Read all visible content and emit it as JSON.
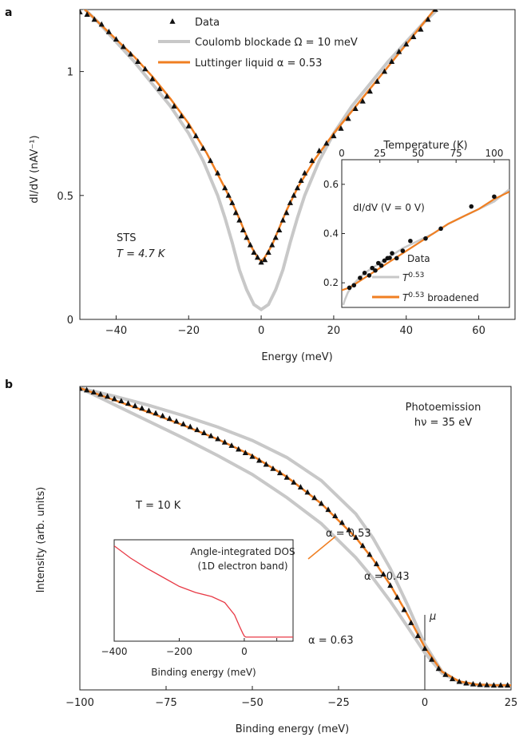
{
  "chart_data": [
    {
      "panel": "a",
      "type": "scatter",
      "xlabel": "Energy (meV)",
      "ylabel": "dI/dV (nAV⁻¹)",
      "xlim": [
        -50,
        70
      ],
      "ylim": [
        0,
        1.25
      ],
      "xticks": [
        "−40",
        "−20",
        "0",
        "20",
        "40",
        "60"
      ],
      "xtick_values": [
        -40,
        -20,
        0,
        20,
        40,
        60
      ],
      "yticks": [
        "0",
        "0.5",
        "1"
      ],
      "ytick_values": [
        0,
        0.5,
        1
      ],
      "annotation": [
        "STS",
        "T = 4.7 K"
      ],
      "legend": {
        "placement": "top-center",
        "entries": [
          {
            "label": "Data",
            "marker": "triangle",
            "color": "#111111"
          },
          {
            "label": "Coulomb blockade Ω = 10 meV",
            "color": "#c8c8c8"
          },
          {
            "label": "Luttinger liquid α = 0.53",
            "color": "#f07f22"
          }
        ]
      },
      "series": [
        {
          "name": "Data",
          "kind": "scatter",
          "marker": "triangle",
          "color": "#111111",
          "x": [
            -50,
            -48,
            -46,
            -44,
            -42,
            -40,
            -38,
            -36,
            -34,
            -32,
            -30,
            -28,
            -26,
            -24,
            -22,
            -20,
            -18,
            -16,
            -14,
            -12,
            -10,
            -9,
            -8,
            -7,
            -6,
            -5,
            -4,
            -3,
            -2,
            -1,
            0,
            1,
            2,
            3,
            4,
            5,
            6,
            7,
            8,
            9,
            10,
            11,
            12,
            14,
            16,
            18,
            20,
            22,
            24,
            26,
            28,
            30,
            32,
            34,
            36,
            38,
            40,
            42,
            44,
            46,
            48,
            50
          ],
          "y": [
            1.24,
            1.23,
            1.21,
            1.19,
            1.16,
            1.13,
            1.1,
            1.07,
            1.04,
            1.01,
            0.97,
            0.93,
            0.9,
            0.86,
            0.82,
            0.78,
            0.74,
            0.69,
            0.64,
            0.59,
            0.53,
            0.5,
            0.47,
            0.43,
            0.4,
            0.36,
            0.33,
            0.3,
            0.27,
            0.25,
            0.23,
            0.24,
            0.27,
            0.3,
            0.33,
            0.36,
            0.4,
            0.43,
            0.47,
            0.5,
            0.53,
            0.56,
            0.59,
            0.64,
            0.68,
            0.71,
            0.74,
            0.77,
            0.81,
            0.85,
            0.88,
            0.92,
            0.96,
            1.0,
            1.04,
            1.08,
            1.11,
            1.14,
            1.17,
            1.21,
            1.25,
            1.29
          ]
        },
        {
          "name": "Luttinger liquid α = 0.53",
          "kind": "line",
          "color": "#f07f22",
          "x": [
            -50,
            -45,
            -40,
            -35,
            -30,
            -25,
            -20,
            -15,
            -10,
            -7,
            -5,
            -3,
            -1,
            0,
            1,
            3,
            5,
            7,
            10,
            15,
            20,
            25,
            30,
            35,
            40,
            45,
            50
          ],
          "y": [
            1.27,
            1.2,
            1.13,
            1.06,
            0.98,
            0.89,
            0.79,
            0.67,
            0.53,
            0.44,
            0.37,
            0.3,
            0.25,
            0.235,
            0.25,
            0.3,
            0.37,
            0.44,
            0.53,
            0.65,
            0.75,
            0.84,
            0.93,
            1.02,
            1.11,
            1.2,
            1.29
          ]
        },
        {
          "name": "Coulomb blockade Ω = 10 meV",
          "kind": "line",
          "color": "#c8c8c8",
          "x": [
            -50,
            -45,
            -40,
            -35,
            -30,
            -25,
            -20,
            -16,
            -12,
            -10,
            -8,
            -6,
            -4,
            -2,
            0,
            2,
            4,
            6,
            8,
            10,
            12,
            16,
            20,
            25,
            30,
            35,
            40,
            45,
            50
          ],
          "y": [
            1.27,
            1.2,
            1.12,
            1.04,
            0.95,
            0.86,
            0.75,
            0.64,
            0.5,
            0.41,
            0.31,
            0.2,
            0.12,
            0.06,
            0.04,
            0.06,
            0.12,
            0.2,
            0.31,
            0.41,
            0.5,
            0.64,
            0.75,
            0.86,
            0.95,
            1.04,
            1.12,
            1.2,
            1.27
          ]
        }
      ],
      "inset": {
        "xlabel": "Temperature (K)",
        "title": "dI/dV (V = 0 V)",
        "xlim": [
          0,
          110
        ],
        "ylim": [
          0.1,
          0.7
        ],
        "xticks": [
          "0",
          "25",
          "50",
          "75",
          "100"
        ],
        "xtick_values": [
          0,
          25,
          50,
          75,
          100
        ],
        "yticks": [
          "0.2",
          "0.4",
          "0.6"
        ],
        "ytick_values": [
          0.2,
          0.4,
          0.6
        ],
        "legend": [
          {
            "label": "Data",
            "marker": "circle",
            "color": "#111111"
          },
          {
            "label": "T⁰·⁵³",
            "base": "T",
            "sup": "0.53",
            "color": "#c8c8c8"
          },
          {
            "label": "T⁰·⁵³ broadened",
            "base": "T",
            "sup": "0.53",
            "suffix": " broadened",
            "color": "#f07f22"
          }
        ],
        "series": [
          {
            "name": "Data",
            "kind": "scatter",
            "marker": "circle",
            "color": "#111111",
            "x": [
              5,
              8,
              12,
              15,
              18,
              20,
              22,
              24,
              26,
              28,
              30,
              33,
              36,
              40,
              45,
              55,
              65,
              85,
              100
            ],
            "y": [
              0.18,
              0.19,
              0.22,
              0.24,
              0.23,
              0.26,
              0.25,
              0.28,
              0.27,
              0.29,
              0.3,
              0.32,
              0.3,
              0.33,
              0.37,
              0.38,
              0.42,
              0.51,
              0.55
            ]
          },
          {
            "name": "T⁰·⁵³ broadened",
            "kind": "line",
            "color": "#f07f22",
            "x": [
              0,
              5,
              10,
              15,
              20,
              25,
              30,
              40,
              50,
              60,
              70,
              80,
              90,
              100,
              110
            ],
            "y": [
              0.17,
              0.18,
              0.2,
              0.22,
              0.24,
              0.26,
              0.28,
              0.32,
              0.36,
              0.4,
              0.44,
              0.47,
              0.5,
              0.54,
              0.57
            ]
          },
          {
            "name": "T⁰·⁵³",
            "kind": "line",
            "color": "#c8c8c8",
            "x": [
              1,
              2,
              4,
              7,
              10,
              15,
              20,
              30,
              40,
              50,
              60,
              70,
              80,
              90,
              100,
              110
            ],
            "y": [
              0.11,
              0.13,
              0.16,
              0.19,
              0.21,
              0.24,
              0.26,
              0.3,
              0.34,
              0.37,
              0.4,
              0.44,
              0.47,
              0.5,
              0.53,
              0.58
            ]
          }
        ]
      }
    },
    {
      "panel": "b",
      "type": "scatter",
      "xlabel": "Binding energy (meV)",
      "ylabel": "Intensity (arb. units)",
      "xlim": [
        -100,
        25
      ],
      "ylim": [
        0,
        1
      ],
      "xticks": [
        "−100",
        "−75",
        "−50",
        "−25",
        "0",
        "25"
      ],
      "xtick_values": [
        -100,
        -75,
        -50,
        -25,
        0,
        25
      ],
      "annotation_top": [
        "Photoemission",
        "hν = 35 eV"
      ],
      "annotation_temp": "T = 10 K",
      "mu_label": "μ",
      "alpha_labels": [
        {
          "text": "α = 0.53",
          "color": "#f07f22"
        },
        {
          "text": "α = 0.43",
          "color": "#222222"
        },
        {
          "text": "α = 0.63",
          "color": "#222222"
        }
      ],
      "series": [
        {
          "name": "Data",
          "kind": "scatter",
          "marker": "triangle",
          "color": "#111111",
          "x": [
            -100,
            -98,
            -96,
            -94,
            -92,
            -90,
            -88,
            -86,
            -84,
            -82,
            -80,
            -78,
            -76,
            -74,
            -72,
            -70,
            -68,
            -66,
            -64,
            -62,
            -60,
            -58,
            -56,
            -54,
            -52,
            -50,
            -48,
            -46,
            -44,
            -42,
            -40,
            -38,
            -36,
            -34,
            -32,
            -30,
            -28,
            -26,
            -24,
            -22,
            -20,
            -18,
            -16,
            -14,
            -12,
            -10,
            -8,
            -6,
            -4,
            -2,
            0,
            2,
            4,
            6,
            8,
            10,
            12,
            14,
            16,
            18,
            20,
            22,
            24
          ],
          "y": [
            0.993,
            0.988,
            0.981,
            0.974,
            0.967,
            0.959,
            0.952,
            0.944,
            0.936,
            0.928,
            0.92,
            0.912,
            0.903,
            0.894,
            0.885,
            0.876,
            0.867,
            0.857,
            0.847,
            0.837,
            0.827,
            0.816,
            0.805,
            0.793,
            0.781,
            0.769,
            0.756,
            0.743,
            0.729,
            0.715,
            0.7,
            0.684,
            0.668,
            0.651,
            0.633,
            0.614,
            0.594,
            0.573,
            0.551,
            0.527,
            0.502,
            0.475,
            0.446,
            0.415,
            0.381,
            0.344,
            0.305,
            0.264,
            0.221,
            0.178,
            0.136,
            0.1,
            0.07,
            0.05,
            0.036,
            0.027,
            0.022,
            0.019,
            0.017,
            0.016,
            0.015,
            0.015,
            0.015
          ]
        },
        {
          "name": "α = 0.53",
          "kind": "line",
          "color": "#f07f22",
          "x": [
            -100,
            -90,
            -80,
            -70,
            -60,
            -50,
            -40,
            -30,
            -20,
            -15,
            -10,
            -5,
            0,
            5,
            10,
            15,
            20,
            25
          ],
          "y": [
            0.995,
            0.955,
            0.915,
            0.872,
            0.826,
            0.772,
            0.702,
            0.614,
            0.502,
            0.43,
            0.346,
            0.248,
            0.14,
            0.06,
            0.028,
            0.018,
            0.015,
            0.015
          ]
        },
        {
          "name": "α = 0.43",
          "kind": "line",
          "color": "#c8c8c8",
          "x": [
            -100,
            -90,
            -80,
            -70,
            -60,
            -50,
            -40,
            -30,
            -20,
            -15,
            -10,
            -5,
            0,
            5,
            10,
            15,
            20,
            25
          ],
          "y": [
            0.995,
            0.968,
            0.938,
            0.904,
            0.866,
            0.822,
            0.766,
            0.69,
            0.58,
            0.5,
            0.4,
            0.28,
            0.15,
            0.06,
            0.025,
            0.016,
            0.014,
            0.014
          ]
        },
        {
          "name": "α = 0.63",
          "kind": "line",
          "color": "#c8c8c8",
          "x": [
            -100,
            -90,
            -80,
            -70,
            -60,
            -50,
            -40,
            -30,
            -20,
            -15,
            -10,
            -5,
            0,
            5,
            10,
            15,
            20,
            25
          ],
          "y": [
            0.995,
            0.94,
            0.885,
            0.83,
            0.772,
            0.71,
            0.634,
            0.548,
            0.436,
            0.368,
            0.292,
            0.208,
            0.122,
            0.055,
            0.026,
            0.017,
            0.015,
            0.015
          ]
        }
      ],
      "inset": {
        "title": [
          "Angle-integrated DOS",
          "(1D electron band)"
        ],
        "xlabel": "Binding energy (meV)",
        "xlim": [
          -400,
          150
        ],
        "ylim": [
          0,
          1
        ],
        "xticks": [
          "−400",
          "−200",
          "0",
          "100"
        ],
        "xtick_values": [
          -400,
          -200,
          0,
          100
        ],
        "series": [
          {
            "name": "DOS",
            "kind": "line",
            "color": "#e83a46",
            "x": [
              -400,
              -350,
              -300,
              -250,
              -200,
              -150,
              -100,
              -60,
              -30,
              -15,
              -5,
              0,
              5,
              50,
              100,
              150
            ],
            "y": [
              0.94,
              0.82,
              0.72,
              0.63,
              0.54,
              0.48,
              0.44,
              0.38,
              0.26,
              0.15,
              0.08,
              0.05,
              0.04,
              0.04,
              0.04,
              0.04
            ]
          }
        ]
      }
    }
  ]
}
